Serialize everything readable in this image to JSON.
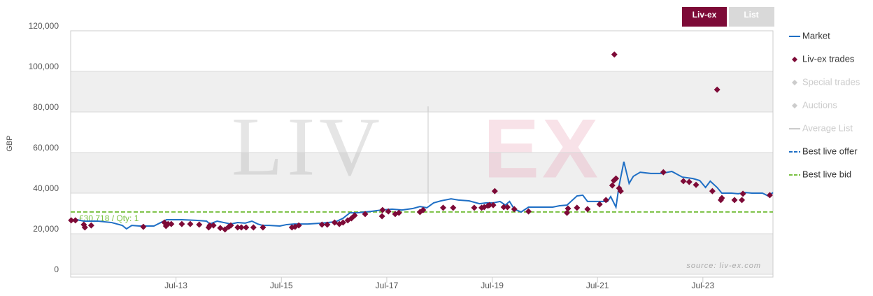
{
  "chart_data": {
    "type": "line",
    "y_label": "GBP",
    "ylim": [
      0,
      120000
    ],
    "yticks": [
      0,
      {
        "value": 20000,
        "label": "20,000"
      },
      {
        "value": 40000,
        "label": "40,000"
      },
      {
        "value": 60000,
        "label": "60,000"
      },
      {
        "value": 80000,
        "label": "80,000"
      },
      {
        "value": 100000,
        "label": "100,000"
      },
      {
        "value": 120000,
        "label": "120,000"
      }
    ],
    "xlim": [
      2011.5,
      2024.83
    ],
    "xticks": [
      {
        "value": 2013.5,
        "label": "Jul-13"
      },
      {
        "value": 2015.5,
        "label": "Jul-15"
      },
      {
        "value": 2017.5,
        "label": "Jul-17"
      },
      {
        "value": 2019.5,
        "label": "Jul-19"
      },
      {
        "value": 2021.5,
        "label": "Jul-21"
      },
      {
        "value": 2023.5,
        "label": "Jul-23"
      }
    ],
    "bands": true,
    "legend": "right",
    "buttons": [
      "Liv-ex",
      "List"
    ],
    "watermark": [
      "LIV",
      "EX"
    ],
    "source": "source: liv-ex.com",
    "series": [
      {
        "name": "Market",
        "color": "#1f6fc5",
        "type": "line",
        "x": [
          2011.5,
          2011.62,
          2011.75,
          2012.02,
          2012.28,
          2012.48,
          2012.56,
          2012.66,
          2012.81,
          2013.08,
          2013.21,
          2013.32,
          2013.61,
          2013.88,
          2014.08,
          2014.14,
          2014.28,
          2014.41,
          2014.54,
          2014.67,
          2014.81,
          2014.94,
          2015.05,
          2015.14,
          2015.27,
          2015.47,
          2015.6,
          2015.74,
          2016.0,
          2016.27,
          2016.53,
          2016.67,
          2016.8,
          2016.93,
          2017.2,
          2017.4,
          2017.6,
          2017.79,
          2017.99,
          2018.13,
          2018.26,
          2018.39,
          2018.53,
          2018.72,
          2018.86,
          2019.06,
          2019.26,
          2019.39,
          2019.52,
          2019.65,
          2019.75,
          2019.83,
          2019.92,
          2020.05,
          2020.19,
          2020.38,
          2020.65,
          2020.78,
          2020.92,
          2021.11,
          2021.22,
          2021.31,
          2021.51,
          2021.69,
          2021.75,
          2021.85,
          2021.91,
          2022.0,
          2022.1,
          2022.18,
          2022.31,
          2022.51,
          2022.71,
          2022.91,
          2023.11,
          2023.31,
          2023.44,
          2023.55,
          2023.64,
          2023.77,
          2023.86,
          2024.04,
          2024.17,
          2024.3,
          2024.43,
          2024.63,
          2024.74,
          2024.83
        ],
        "values": [
          26200,
          26900,
          26200,
          26200,
          25500,
          24100,
          22400,
          24100,
          23800,
          23800,
          25500,
          26900,
          26900,
          26600,
          26200,
          24800,
          26200,
          25500,
          24800,
          25500,
          25200,
          26200,
          24800,
          24100,
          24100,
          23800,
          24500,
          24800,
          24800,
          25200,
          25900,
          27600,
          30300,
          30300,
          31000,
          31700,
          32100,
          31700,
          32400,
          33400,
          32800,
          35200,
          36200,
          37200,
          36600,
          36200,
          34800,
          35200,
          35200,
          35900,
          34100,
          35900,
          32100,
          30700,
          33100,
          33100,
          33100,
          33800,
          34100,
          38600,
          39000,
          35900,
          35900,
          35900,
          38300,
          33100,
          43800,
          55500,
          44800,
          48300,
          50300,
          49700,
          49700,
          50700,
          47900,
          47200,
          46200,
          42800,
          45900,
          42800,
          40000,
          40000,
          39700,
          40300,
          40000,
          40000,
          38600,
          40300
        ]
      },
      {
        "name": "Liv-ex trades",
        "color": "#7d0a37",
        "type": "scatter",
        "x": [
          2011.51,
          2011.59,
          2011.75,
          2011.77,
          2011.89,
          2012.88,
          2013.28,
          2013.31,
          2013.35,
          2013.41,
          2013.61,
          2013.77,
          2013.94,
          2014.12,
          2014.14,
          2014.21,
          2014.34,
          2014.43,
          2014.5,
          2014.54,
          2014.67,
          2014.74,
          2014.83,
          2014.97,
          2015.15,
          2015.7,
          2015.76,
          2015.83,
          2016.27,
          2016.37,
          2016.51,
          2016.6,
          2016.67,
          2016.76,
          2016.83,
          2016.89,
          2017.09,
          2017.41,
          2017.42,
          2017.53,
          2017.66,
          2017.73,
          2018.13,
          2018.19,
          2018.57,
          2018.76,
          2019.16,
          2019.3,
          2019.35,
          2019.42,
          2019.45,
          2019.52,
          2019.55,
          2019.72,
          2019.79,
          2019.92,
          2020.19,
          2020.92,
          2020.94,
          2021.11,
          2021.31,
          2021.54,
          2021.66,
          2021.78,
          2021.81,
          2021.85,
          2021.91,
          2021.94,
          2021.82,
          2022.75,
          2023.13,
          2023.24,
          2023.37,
          2023.68,
          2023.84,
          2023.86,
          2023.77,
          2024.1,
          2024.24,
          2024.26,
          2024.77
        ],
        "values": [
          26600,
          26600,
          24500,
          23100,
          24100,
          23400,
          25500,
          23800,
          24800,
          24800,
          24800,
          24800,
          24500,
          23100,
          24100,
          24100,
          22800,
          22100,
          23400,
          24100,
          23100,
          23100,
          23100,
          23100,
          23100,
          23100,
          23400,
          24100,
          24500,
          24500,
          25500,
          24800,
          25500,
          26600,
          27600,
          29000,
          29700,
          28600,
          31700,
          31000,
          29700,
          30300,
          30700,
          31700,
          32800,
          32800,
          32800,
          32800,
          33100,
          33800,
          34100,
          34100,
          41000,
          33100,
          33100,
          32100,
          31000,
          30300,
          32400,
          32800,
          32100,
          34500,
          36600,
          43800,
          46200,
          47200,
          42400,
          41000,
          108300,
          50300,
          45900,
          45500,
          44100,
          41000,
          36600,
          37600,
          91000,
          36600,
          36600,
          39700,
          39000
        ]
      }
    ],
    "legend_only": [
      {
        "name": "Special trades",
        "color": "#cccccc",
        "marker": "diamond"
      },
      {
        "name": "Auctions",
        "color": "#cccccc",
        "marker": "diamond"
      },
      {
        "name": "Average List",
        "color": "#cccccc",
        "marker": "line"
      },
      {
        "name": "Best live offer",
        "color": "#1f6fc5",
        "marker": "dash"
      }
    ],
    "reference_line": {
      "name": "Best live bid",
      "value": 30718,
      "label": "£30,718 / Qty: 1",
      "color": "#7ac143"
    }
  }
}
